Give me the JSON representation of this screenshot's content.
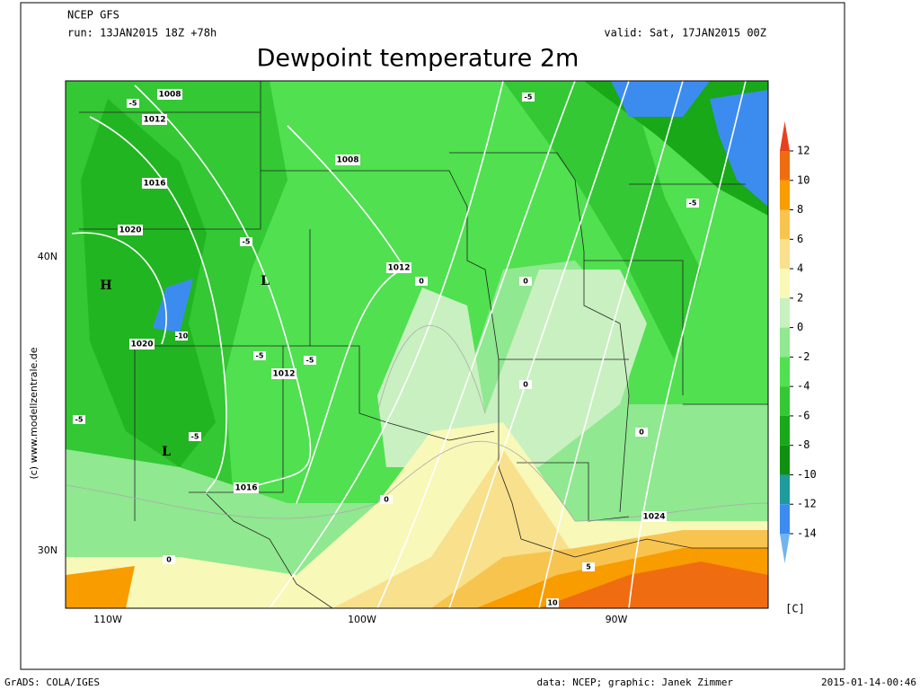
{
  "header": {
    "model": "NCEP GFS",
    "run": "run: 13JAN2015 18Z +78h",
    "valid": "valid: Sat, 17JAN2015 00Z",
    "title": "Dewpoint temperature 2m"
  },
  "map": {
    "lat_labels": [
      "40N",
      "30N"
    ],
    "lon_labels": [
      "110W",
      "100W",
      "90W"
    ],
    "isobar_labels": [
      1008,
      1012,
      1016,
      1020,
      1008,
      1012,
      1020,
      1012,
      1016,
      1024
    ],
    "dewpoint_labels": [
      -5,
      -5,
      -5,
      -10,
      -5,
      -5,
      -5,
      -5,
      -5,
      0,
      0,
      0,
      0,
      0,
      0,
      5,
      10
    ],
    "pressure_centers": [
      "H",
      "L",
      "L"
    ]
  },
  "colorbar": {
    "ticks": [
      12,
      10,
      8,
      6,
      4,
      2,
      0,
      -2,
      -4,
      -6,
      -8,
      -10,
      -12,
      -14
    ],
    "unit": "[C]",
    "colors": [
      "#e8401c",
      "#f06c10",
      "#f89c00",
      "#f8c450",
      "#f8e08c",
      "#f8f8b8",
      "#c8f0c0",
      "#90e890",
      "#50e050",
      "#34c834",
      "#18a818",
      "#109010",
      "#1e9c9c",
      "#3c8cf0",
      "#70b4f0"
    ]
  },
  "credit": "(c) www.modellzentrale.de",
  "footer": {
    "left": "GrADS: COLA/IGES",
    "center": "data: NCEP; graphic: Janek Zimmer",
    "right": "2015-01-14-00:46"
  }
}
